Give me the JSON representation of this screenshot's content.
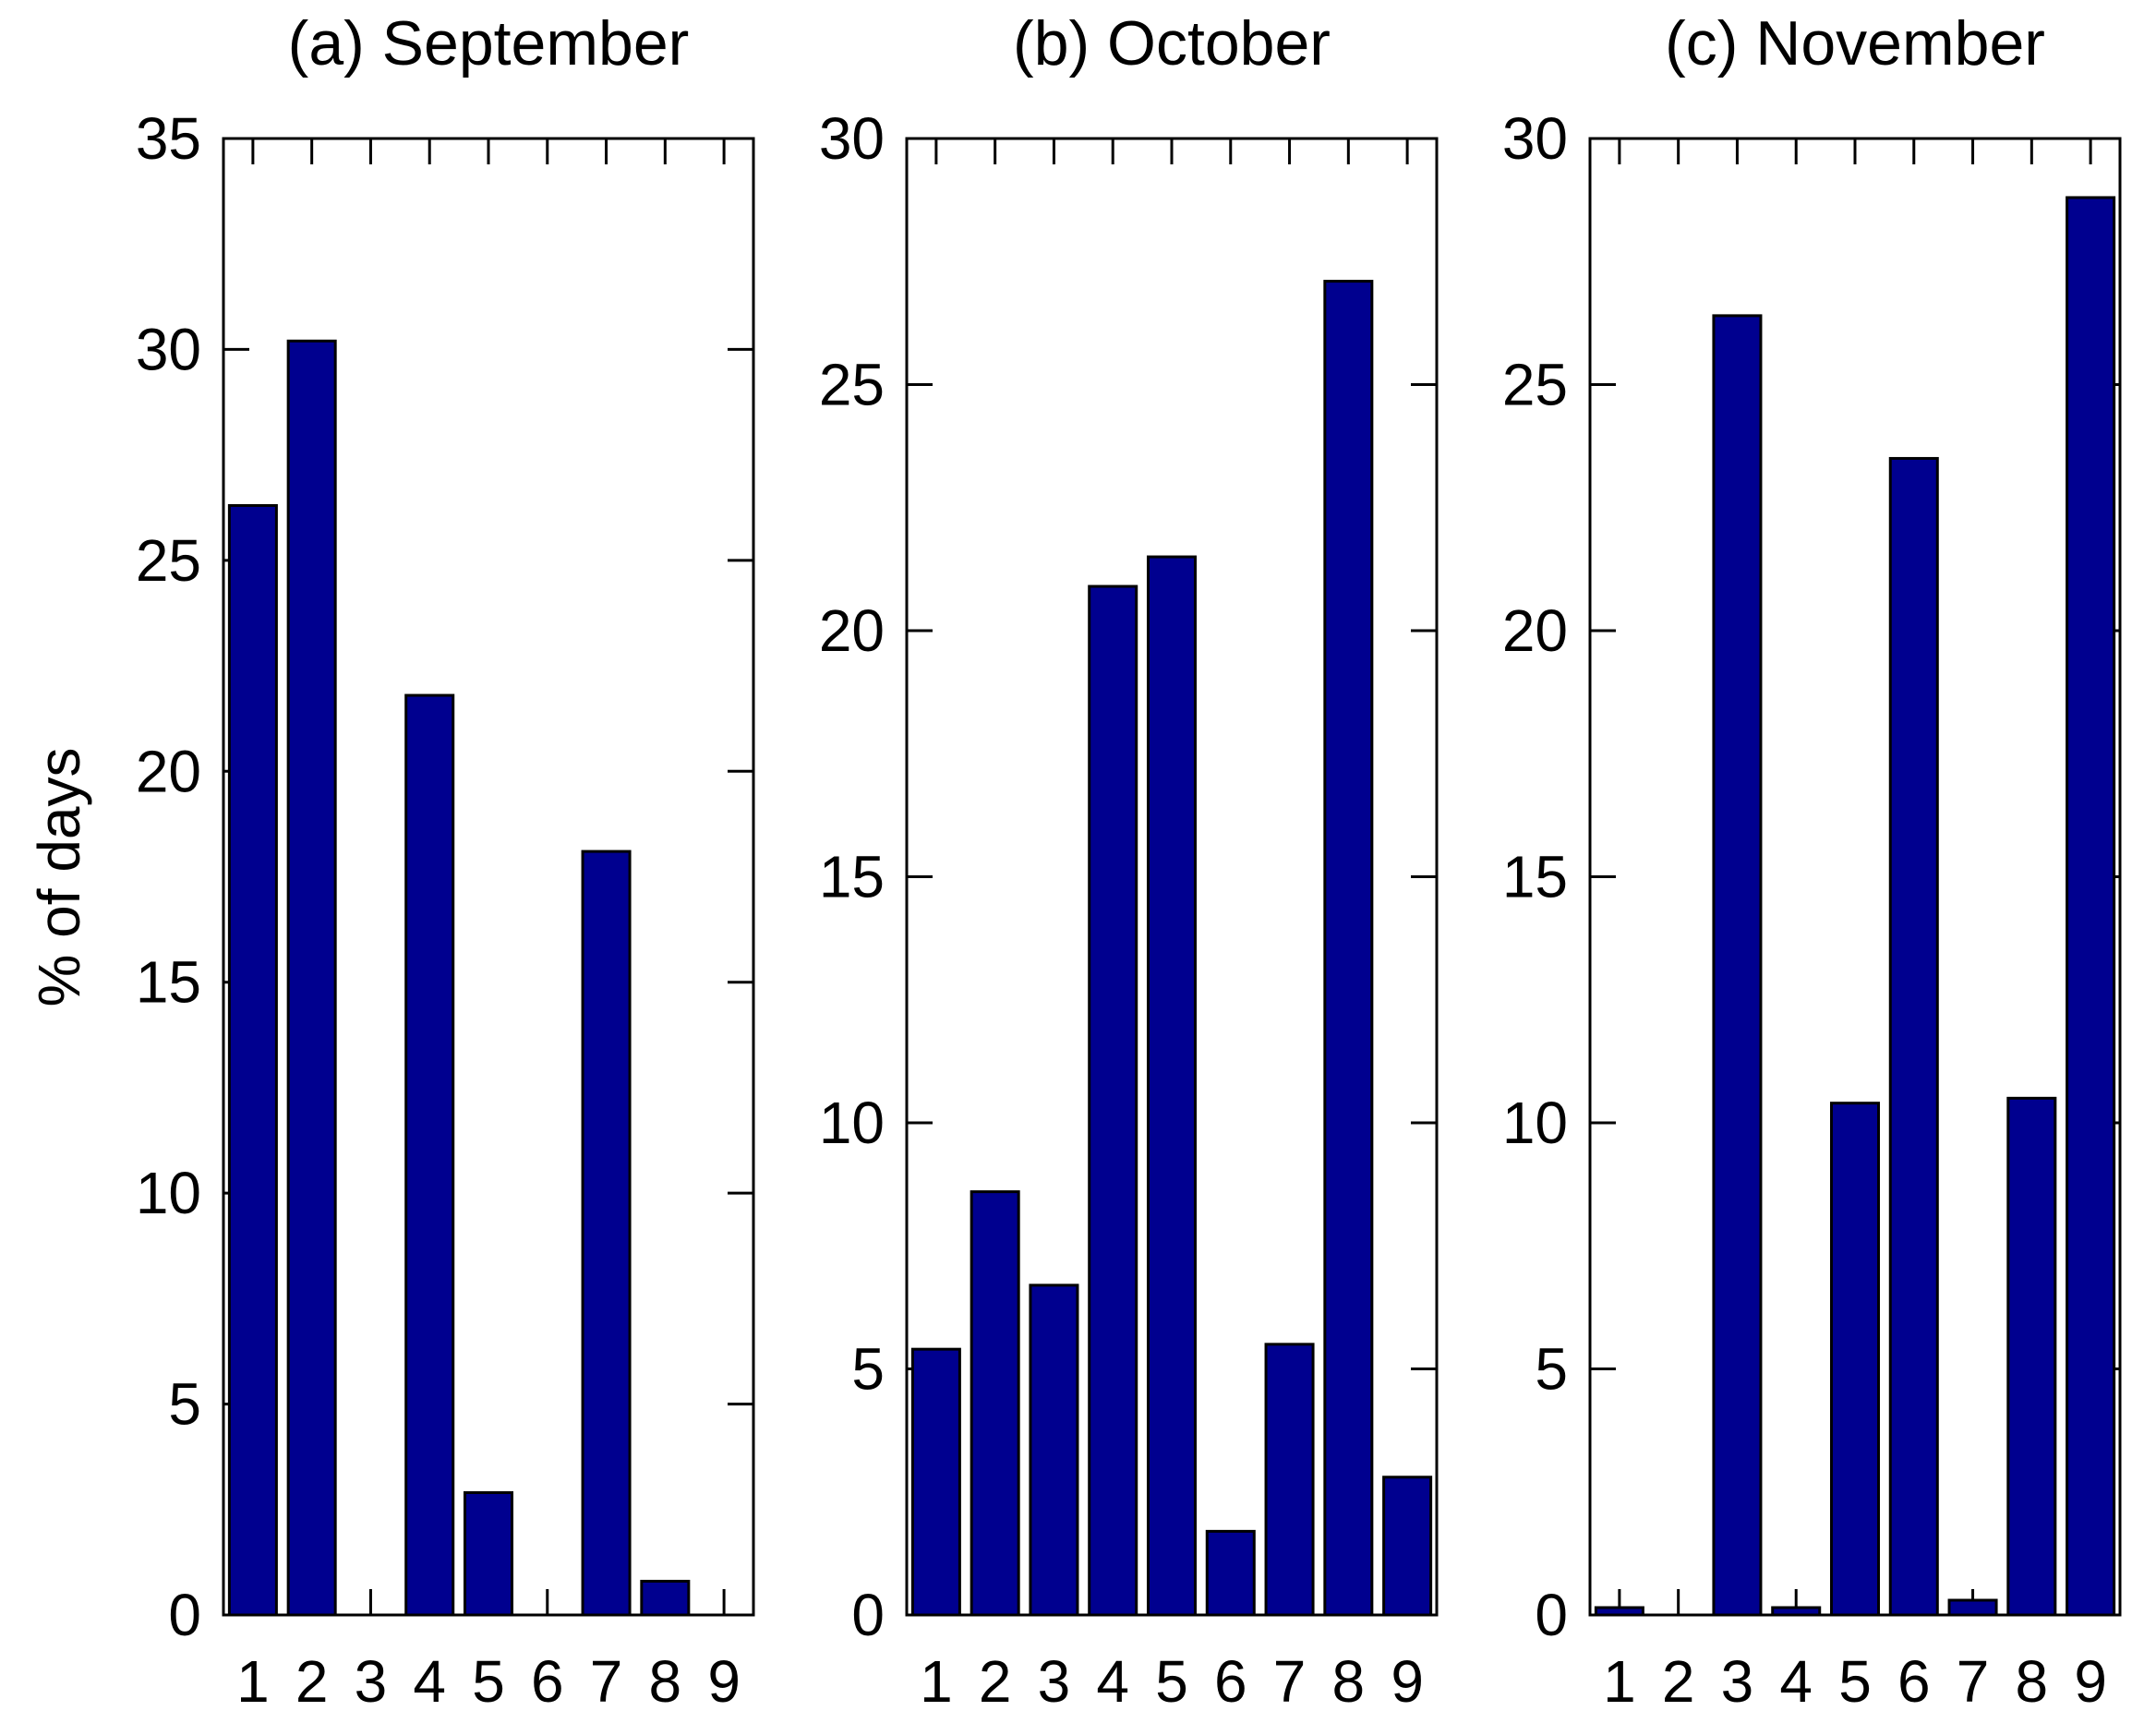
{
  "figure": {
    "ylabel": "% of days",
    "background": "#ffffff",
    "bar_fill": "#00008F",
    "bar_edge": "#000000",
    "axis_color": "#000000"
  },
  "chart_data": [
    {
      "type": "bar",
      "title": "(a) September",
      "categories": [
        "1",
        "2",
        "3",
        "4",
        "5",
        "6",
        "7",
        "8",
        "9"
      ],
      "values": [
        26.3,
        30.2,
        0,
        21.8,
        2.9,
        0,
        18.1,
        0.8,
        0
      ],
      "xlabel": "",
      "ylabel": "% of days",
      "ylim": [
        0,
        35
      ],
      "yticks": [
        0,
        5,
        10,
        15,
        20,
        25,
        30,
        35
      ],
      "grid": false,
      "legend": "none"
    },
    {
      "type": "bar",
      "title": "(b) October",
      "categories": [
        "1",
        "2",
        "3",
        "4",
        "5",
        "6",
        "7",
        "8",
        "9"
      ],
      "values": [
        5.4,
        8.6,
        6.7,
        20.9,
        21.5,
        1.7,
        5.5,
        27.1,
        2.8
      ],
      "xlabel": "",
      "ylabel": "",
      "ylim": [
        0,
        30
      ],
      "yticks": [
        0,
        5,
        10,
        15,
        20,
        25,
        30
      ],
      "grid": false,
      "legend": "none"
    },
    {
      "type": "bar",
      "title": "(c) November",
      "categories": [
        "1",
        "2",
        "3",
        "4",
        "5",
        "6",
        "7",
        "8",
        "9"
      ],
      "values": [
        0.15,
        0,
        26.4,
        0.15,
        10.4,
        23.5,
        0.3,
        10.5,
        28.8
      ],
      "xlabel": "",
      "ylabel": "",
      "ylim": [
        0,
        30
      ],
      "yticks": [
        0,
        5,
        10,
        15,
        20,
        25,
        30
      ],
      "grid": false,
      "legend": "none"
    }
  ]
}
